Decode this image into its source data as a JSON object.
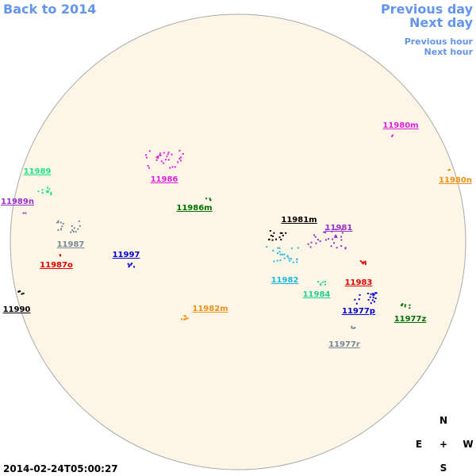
{
  "nav": {
    "back": "Back to 2014",
    "previous_day": "Previous day",
    "next_day": "Next day",
    "previous_hour": "Previous hour",
    "next_hour": "Next hour"
  },
  "timestamp": "2014-02-24T05:00:27",
  "compass": {
    "north": "N",
    "east": "E",
    "center": "+",
    "west": "W",
    "south": "S"
  },
  "regions": [
    {
      "label": "11980m",
      "color": "#e020e0"
    },
    {
      "label": "11980n",
      "color": "#f0901a"
    },
    {
      "label": "11989",
      "color": "#20e090"
    },
    {
      "label": "11989n",
      "color": "#9932cc"
    },
    {
      "label": "11986",
      "color": "#e020e0"
    },
    {
      "label": "11986m",
      "color": "#007000"
    },
    {
      "label": "11981m",
      "color": "#000000"
    },
    {
      "label": "11981",
      "color": "#9932cc"
    },
    {
      "label": "11987",
      "color": "#778899"
    },
    {
      "label": "11997",
      "color": "#0000d0"
    },
    {
      "label": "11987o",
      "color": "#e00000"
    },
    {
      "label": "11982",
      "color": "#20b8e0"
    },
    {
      "label": "11983",
      "color": "#e00000"
    },
    {
      "label": "11984",
      "color": "#20d090"
    },
    {
      "label": "11990",
      "color": "#000000"
    },
    {
      "label": "11982m",
      "color": "#f0901a"
    },
    {
      "label": "11977p",
      "color": "#0000d0"
    },
    {
      "label": "11977z",
      "color": "#007000"
    },
    {
      "label": "11977r",
      "color": "#778899"
    }
  ]
}
